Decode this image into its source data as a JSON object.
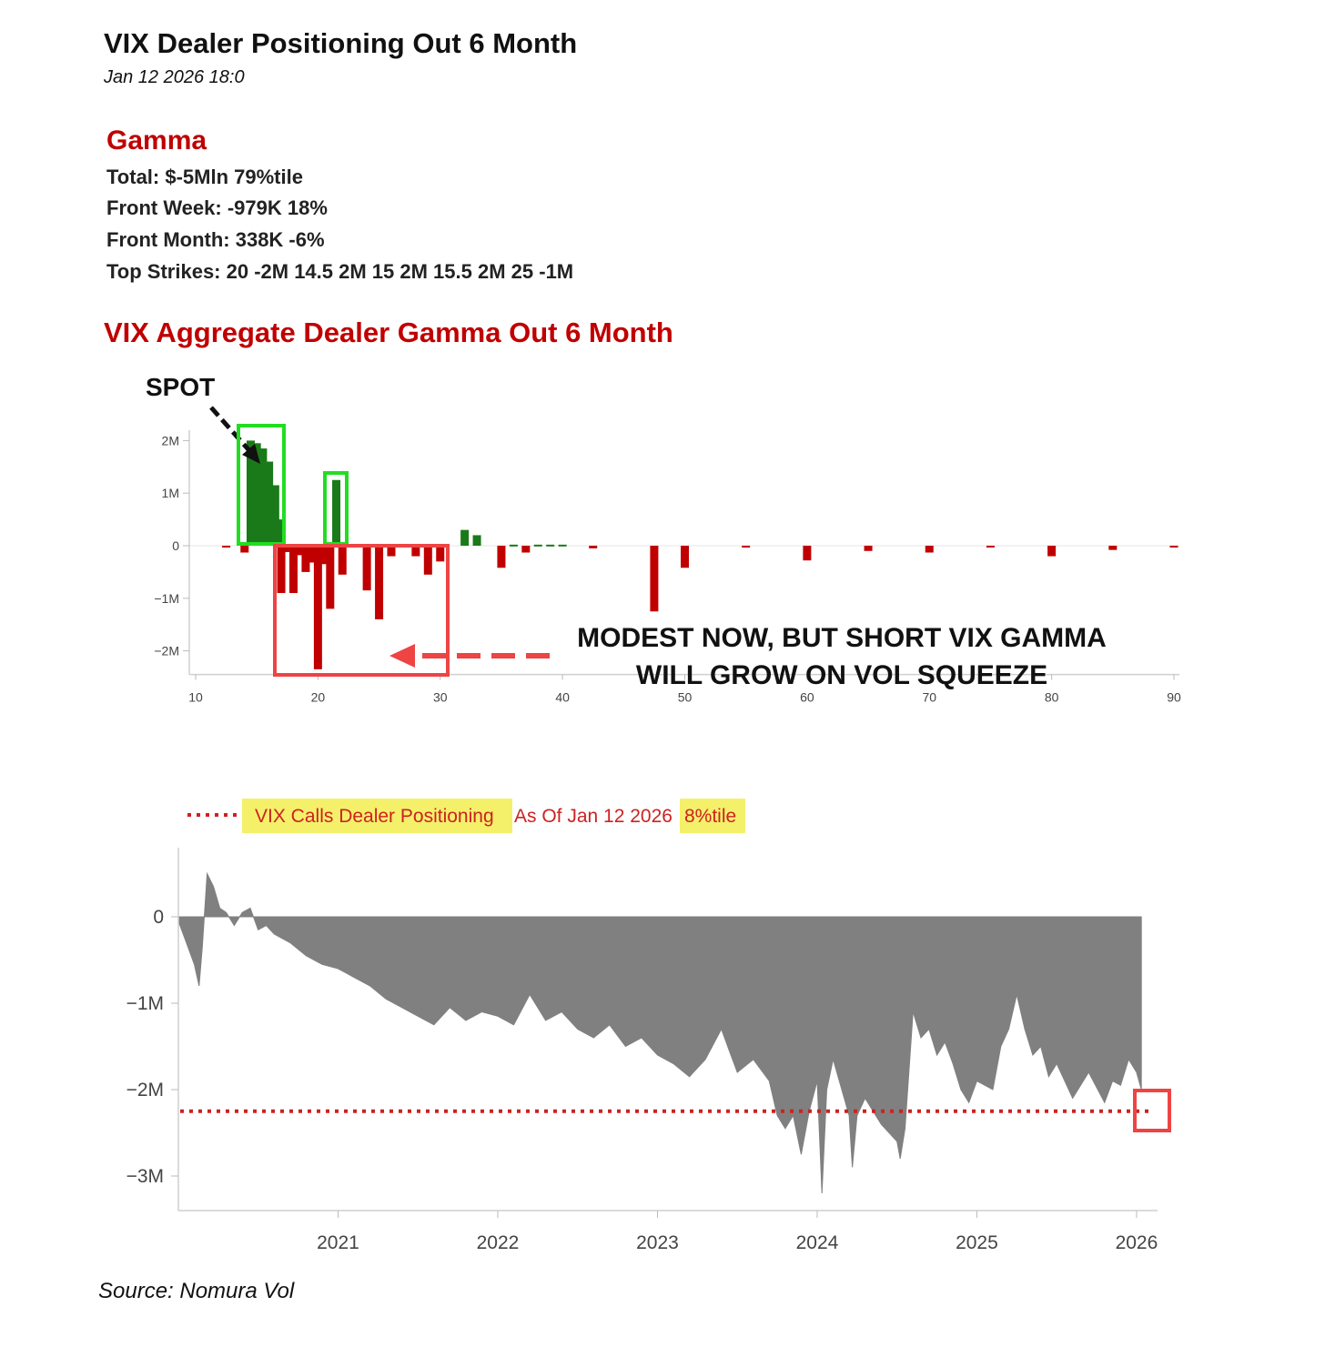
{
  "header": {
    "title": "VIX Dealer Positioning Out 6 Month",
    "timestamp": "Jan 12 2026 18:0"
  },
  "gamma": {
    "heading": "Gamma",
    "lines": [
      "Total: $-5Mln 79%tile",
      "Front Week: -979K 18%",
      "Front Month: 338K -6%",
      "Top Strikes: 20 -2M 14.5 2M 15 2M 15.5 2M 25 -1M"
    ]
  },
  "footer": {
    "source": "Source: Nomura Vol"
  },
  "colors": {
    "positive": "#1a7a1a",
    "negative": "#c00000",
    "highlight_green": "#22dd22",
    "highlight_red": "#ee4444",
    "area": "#808080",
    "dotted": "#cc2222",
    "legend_highlight": "#f5f06a"
  },
  "chart_data": [
    {
      "type": "bar",
      "title": "VIX Aggregate Dealer Gamma Out 6 Month",
      "x_ticks": [
        10,
        20,
        30,
        40,
        50,
        60,
        70,
        80,
        90
      ],
      "xlim": [
        10,
        90
      ],
      "y_ticks": [
        2000000,
        1000000,
        0,
        -1000000,
        -2000000
      ],
      "y_tick_labels": [
        "2M",
        "1M",
        "0",
        "−1M",
        "−2M"
      ],
      "ylim": [
        -2450000,
        2200000
      ],
      "bars": [
        {
          "x": 12.5,
          "y": -20000
        },
        {
          "x": 14,
          "y": -130000
        },
        {
          "x": 14.5,
          "y": 2000000
        },
        {
          "x": 15,
          "y": 1950000
        },
        {
          "x": 15.5,
          "y": 1850000
        },
        {
          "x": 16,
          "y": 1600000
        },
        {
          "x": 16.5,
          "y": 1150000
        },
        {
          "x": 17,
          "y": 500000
        },
        {
          "x": 17,
          "y": -900000
        },
        {
          "x": 17.5,
          "y": -120000
        },
        {
          "x": 18,
          "y": -900000
        },
        {
          "x": 18.5,
          "y": -180000
        },
        {
          "x": 19,
          "y": -500000
        },
        {
          "x": 19.5,
          "y": -320000
        },
        {
          "x": 20,
          "y": -2350000
        },
        {
          "x": 20.5,
          "y": -350000
        },
        {
          "x": 21,
          "y": -1200000
        },
        {
          "x": 21.5,
          "y": 1250000
        },
        {
          "x": 22,
          "y": -550000
        },
        {
          "x": 24,
          "y": -850000
        },
        {
          "x": 25,
          "y": -1400000
        },
        {
          "x": 26,
          "y": -200000
        },
        {
          "x": 27,
          "y": -20000
        },
        {
          "x": 28,
          "y": -200000
        },
        {
          "x": 29,
          "y": -550000
        },
        {
          "x": 30,
          "y": -300000
        },
        {
          "x": 32,
          "y": 300000
        },
        {
          "x": 33,
          "y": 200000
        },
        {
          "x": 35,
          "y": -420000
        },
        {
          "x": 36,
          "y": 20000
        },
        {
          "x": 37,
          "y": -130000
        },
        {
          "x": 38,
          "y": 20000
        },
        {
          "x": 39,
          "y": 20000
        },
        {
          "x": 40,
          "y": 20000
        },
        {
          "x": 42.5,
          "y": -50000
        },
        {
          "x": 47.5,
          "y": -1250000
        },
        {
          "x": 50,
          "y": -420000
        },
        {
          "x": 55,
          "y": -20000
        },
        {
          "x": 60,
          "y": -280000
        },
        {
          "x": 65,
          "y": -100000
        },
        {
          "x": 70,
          "y": -130000
        },
        {
          "x": 75,
          "y": -20000
        },
        {
          "x": 80,
          "y": -200000
        },
        {
          "x": 85,
          "y": -80000
        },
        {
          "x": 90,
          "y": -20000
        }
      ],
      "annotations": {
        "spot_label": "SPOT",
        "callout_line1": "MODEST NOW, BUT SHORT VIX GAMMA",
        "callout_line2": "WILL GROW ON VOL SQUEEZE"
      }
    },
    {
      "type": "area",
      "legend": {
        "part1": "VIX Calls Dealer Positioning",
        "part2": "As Of Jan 12 2026",
        "part3": "8%tile"
      },
      "x_ticks": [
        2021,
        2022,
        2023,
        2024,
        2025,
        2026
      ],
      "xlim": [
        2020.0,
        2026.12
      ],
      "y_ticks": [
        0,
        -1000000,
        -2000000,
        -3000000
      ],
      "y_tick_labels": [
        "0",
        "−1M",
        "−2M",
        "−3M"
      ],
      "ylim": [
        -3400000,
        800000
      ],
      "reference_line": -2250000,
      "series": [
        {
          "x": 2020.0,
          "y": -50000
        },
        {
          "x": 2020.05,
          "y": -300000
        },
        {
          "x": 2020.1,
          "y": -550000
        },
        {
          "x": 2020.13,
          "y": -800000
        },
        {
          "x": 2020.15,
          "y": -350000
        },
        {
          "x": 2020.18,
          "y": 500000
        },
        {
          "x": 2020.22,
          "y": 350000
        },
        {
          "x": 2020.26,
          "y": 100000
        },
        {
          "x": 2020.3,
          "y": 50000
        },
        {
          "x": 2020.35,
          "y": -100000
        },
        {
          "x": 2020.4,
          "y": 50000
        },
        {
          "x": 2020.45,
          "y": 100000
        },
        {
          "x": 2020.5,
          "y": -150000
        },
        {
          "x": 2020.55,
          "y": -100000
        },
        {
          "x": 2020.6,
          "y": -200000
        },
        {
          "x": 2020.7,
          "y": -300000
        },
        {
          "x": 2020.8,
          "y": -450000
        },
        {
          "x": 2020.9,
          "y": -550000
        },
        {
          "x": 2021.0,
          "y": -600000
        },
        {
          "x": 2021.1,
          "y": -700000
        },
        {
          "x": 2021.2,
          "y": -800000
        },
        {
          "x": 2021.3,
          "y": -950000
        },
        {
          "x": 2021.4,
          "y": -1050000
        },
        {
          "x": 2021.5,
          "y": -1150000
        },
        {
          "x": 2021.6,
          "y": -1250000
        },
        {
          "x": 2021.7,
          "y": -1050000
        },
        {
          "x": 2021.8,
          "y": -1200000
        },
        {
          "x": 2021.9,
          "y": -1100000
        },
        {
          "x": 2022.0,
          "y": -1150000
        },
        {
          "x": 2022.1,
          "y": -1250000
        },
        {
          "x": 2022.2,
          "y": -900000
        },
        {
          "x": 2022.3,
          "y": -1200000
        },
        {
          "x": 2022.4,
          "y": -1100000
        },
        {
          "x": 2022.5,
          "y": -1300000
        },
        {
          "x": 2022.6,
          "y": -1400000
        },
        {
          "x": 2022.7,
          "y": -1250000
        },
        {
          "x": 2022.8,
          "y": -1500000
        },
        {
          "x": 2022.9,
          "y": -1400000
        },
        {
          "x": 2023.0,
          "y": -1600000
        },
        {
          "x": 2023.1,
          "y": -1700000
        },
        {
          "x": 2023.2,
          "y": -1850000
        },
        {
          "x": 2023.3,
          "y": -1650000
        },
        {
          "x": 2023.4,
          "y": -1300000
        },
        {
          "x": 2023.45,
          "y": -1550000
        },
        {
          "x": 2023.5,
          "y": -1800000
        },
        {
          "x": 2023.6,
          "y": -1650000
        },
        {
          "x": 2023.7,
          "y": -1900000
        },
        {
          "x": 2023.75,
          "y": -2300000
        },
        {
          "x": 2023.8,
          "y": -2450000
        },
        {
          "x": 2023.85,
          "y": -2300000
        },
        {
          "x": 2023.9,
          "y": -2750000
        },
        {
          "x": 2023.95,
          "y": -2250000
        },
        {
          "x": 2024.0,
          "y": -1900000
        },
        {
          "x": 2024.03,
          "y": -3200000
        },
        {
          "x": 2024.06,
          "y": -2000000
        },
        {
          "x": 2024.1,
          "y": -1650000
        },
        {
          "x": 2024.2,
          "y": -2300000
        },
        {
          "x": 2024.22,
          "y": -2900000
        },
        {
          "x": 2024.25,
          "y": -2300000
        },
        {
          "x": 2024.3,
          "y": -2100000
        },
        {
          "x": 2024.4,
          "y": -2400000
        },
        {
          "x": 2024.5,
          "y": -2600000
        },
        {
          "x": 2024.52,
          "y": -2800000
        },
        {
          "x": 2024.55,
          "y": -2450000
        },
        {
          "x": 2024.6,
          "y": -1100000
        },
        {
          "x": 2024.65,
          "y": -1400000
        },
        {
          "x": 2024.7,
          "y": -1300000
        },
        {
          "x": 2024.75,
          "y": -1600000
        },
        {
          "x": 2024.8,
          "y": -1450000
        },
        {
          "x": 2024.85,
          "y": -1700000
        },
        {
          "x": 2024.9,
          "y": -2000000
        },
        {
          "x": 2024.95,
          "y": -2150000
        },
        {
          "x": 2025.0,
          "y": -1900000
        },
        {
          "x": 2025.1,
          "y": -2000000
        },
        {
          "x": 2025.15,
          "y": -1500000
        },
        {
          "x": 2025.2,
          "y": -1300000
        },
        {
          "x": 2025.25,
          "y": -900000
        },
        {
          "x": 2025.3,
          "y": -1300000
        },
        {
          "x": 2025.35,
          "y": -1600000
        },
        {
          "x": 2025.4,
          "y": -1500000
        },
        {
          "x": 2025.45,
          "y": -1850000
        },
        {
          "x": 2025.5,
          "y": -1700000
        },
        {
          "x": 2025.6,
          "y": -2100000
        },
        {
          "x": 2025.7,
          "y": -1800000
        },
        {
          "x": 2025.8,
          "y": -2150000
        },
        {
          "x": 2025.85,
          "y": -1900000
        },
        {
          "x": 2025.9,
          "y": -1950000
        },
        {
          "x": 2025.95,
          "y": -1650000
        },
        {
          "x": 2026.0,
          "y": -1800000
        },
        {
          "x": 2026.03,
          "y": -2000000
        }
      ]
    }
  ]
}
